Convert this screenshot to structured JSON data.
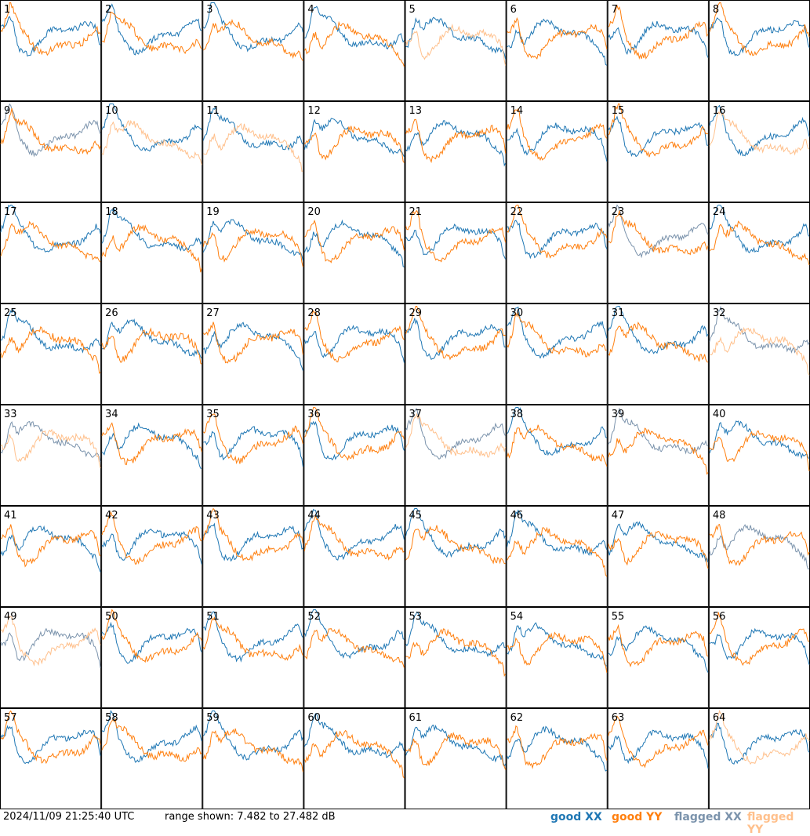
{
  "chart_data": {
    "type": "line",
    "layout": "small-multiples",
    "panel_labels": [
      "1",
      "2",
      "3",
      "4",
      "5",
      "6",
      "7",
      "8",
      "9",
      "10",
      "11",
      "12",
      "13",
      "14",
      "15",
      "16",
      "17",
      "18",
      "19",
      "20",
      "21",
      "22",
      "23",
      "24",
      "25",
      "26",
      "27",
      "28",
      "29",
      "30",
      "31",
      "32",
      "33",
      "34",
      "35",
      "36",
      "37",
      "38",
      "39",
      "40",
      "41",
      "42",
      "43",
      "44",
      "45",
      "46",
      "47",
      "48",
      "49",
      "50",
      "51",
      "52",
      "53",
      "54",
      "55",
      "56",
      "57",
      "58",
      "59",
      "60",
      "61",
      "62",
      "63",
      "64"
    ],
    "ylim": [
      7.482,
      27.482
    ],
    "yunit": "dB",
    "series_legend": [
      {
        "name": "good XX",
        "color": "#1f77b4"
      },
      {
        "name": "good YY",
        "color": "#ff7f0e"
      },
      {
        "name": "flagged XX",
        "color": "#7b93ac"
      },
      {
        "name": "flagged YY",
        "color": "#ffc08c"
      }
    ],
    "panels": {
      "1": {
        "xx": "good",
        "yy": "good"
      },
      "5": {
        "xx": "good",
        "yy": "flagged"
      },
      "9": {
        "xx": "flagged",
        "yy": "good"
      },
      "10": {
        "xx": "good",
        "yy": "flagged"
      },
      "11": {
        "xx": "good",
        "yy": "flagged"
      },
      "16": {
        "xx": "good",
        "yy": "flagged"
      },
      "23": {
        "xx": "flagged",
        "yy": "good"
      },
      "32": {
        "xx": "flagged",
        "yy": "flagged"
      },
      "33": {
        "xx": "flagged",
        "yy": "flagged"
      },
      "37": {
        "xx": "flagged",
        "yy": "flagged"
      },
      "39": {
        "xx": "flagged",
        "yy": "good"
      },
      "48": {
        "xx": "flagged",
        "yy": "good"
      },
      "49": {
        "xx": "flagged",
        "yy": "flagged"
      },
      "64": {
        "xx": "good",
        "yy": "flagged"
      }
    }
  },
  "footer": {
    "timestamp": "2024/11/09 21:25:40 UTC",
    "range_text": "range shown: 7.482 to 27.482 dB"
  },
  "legend": {
    "good_xx": "good XX",
    "good_yy": "good YY",
    "flagged_xx": "flagged XX",
    "flagged_yy": "flagged YY"
  },
  "colors": {
    "good_xx": "#1f77b4",
    "good_yy": "#ff7f0e",
    "flagged_xx": "#7b93ac",
    "flagged_yy": "#ffc08c",
    "grid": "#000000"
  }
}
